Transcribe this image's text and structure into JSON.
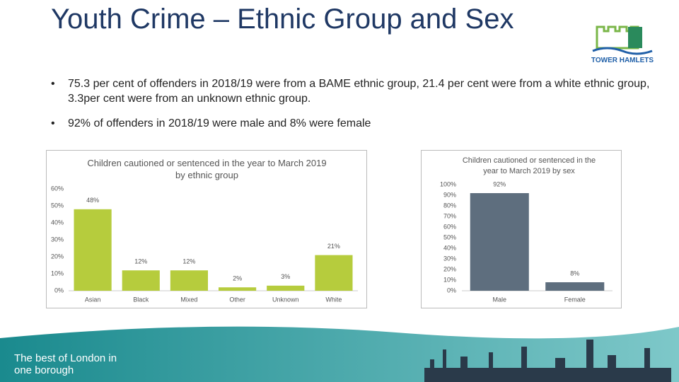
{
  "header": {
    "title": "Youth Crime – Ethnic Group and Sex",
    "logo": "TOWER HAMLETS"
  },
  "bullets": [
    "75.3 per cent of offenders  in 2018/19 were from a BAME ethnic group,  21.4 per cent were from a white ethnic group, 3.3per cent were from an unknown ethnic group.",
    "92% of offenders in 2018/19 were male and 8% were female"
  ],
  "footer": {
    "tagline": "The best of London in one borough"
  },
  "chart_data": [
    {
      "type": "bar",
      "title": "Children cautioned or sentenced in the year to March 2019 by ethnic group",
      "categories": [
        "Asian",
        "Black",
        "Mixed",
        "Other",
        "Unknown",
        "White"
      ],
      "values": [
        48,
        12,
        12,
        2,
        3,
        21
      ],
      "value_labels": [
        "48%",
        "12%",
        "12%",
        "2%",
        "3%",
        "21%"
      ],
      "color": "#b6cc3d",
      "ylim": [
        0,
        60
      ],
      "yticks": [
        {
          "value": 0,
          "label": "0%"
        },
        {
          "value": 10,
          "label": "10%"
        },
        {
          "value": 20,
          "label": "20%"
        },
        {
          "value": 30,
          "label": "30%"
        },
        {
          "value": 40,
          "label": "40%"
        },
        {
          "value": 50,
          "label": "50%"
        },
        {
          "value": 60,
          "label": "60%"
        }
      ]
    },
    {
      "type": "bar",
      "title": "Children cautioned or sentenced in the year to March 2019 by sex",
      "categories": [
        "Male",
        "Female"
      ],
      "values": [
        92,
        8
      ],
      "value_labels": [
        "92%",
        "8%"
      ],
      "color": "#5e6e7e",
      "ylim": [
        0,
        100
      ],
      "yticks": [
        {
          "value": 0,
          "label": "0%"
        },
        {
          "value": 10,
          "label": "10%"
        },
        {
          "value": 20,
          "label": "20%"
        },
        {
          "value": 30,
          "label": "30%"
        },
        {
          "value": 40,
          "label": "40%"
        },
        {
          "value": 50,
          "label": "50%"
        },
        {
          "value": 60,
          "label": "60%"
        },
        {
          "value": 70,
          "label": "70%"
        },
        {
          "value": 80,
          "label": "80%"
        },
        {
          "value": 90,
          "label": "90%"
        },
        {
          "value": 100,
          "label": "100%"
        }
      ]
    }
  ]
}
